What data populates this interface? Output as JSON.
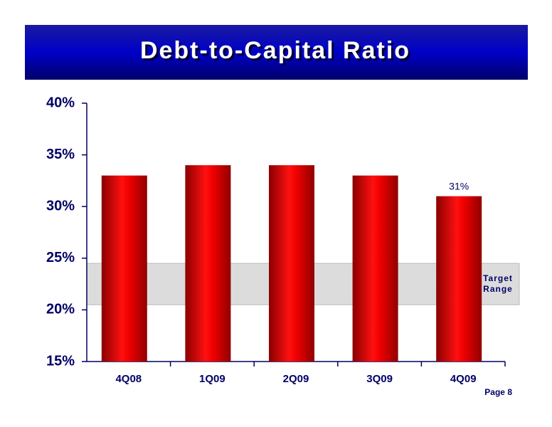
{
  "chart_data": {
    "type": "bar",
    "title": "Debt-to-Capital Ratio",
    "categories": [
      "4Q08",
      "1Q09",
      "2Q09",
      "3Q09",
      "4Q09"
    ],
    "values": [
      33,
      34,
      34,
      33,
      31
    ],
    "value_labels": [
      null,
      null,
      null,
      null,
      "31%"
    ],
    "color": "#e00000",
    "ylim": [
      15,
      40
    ],
    "yticks": [
      {
        "value": 15,
        "label": "15%"
      },
      {
        "value": 20,
        "label": "20%"
      },
      {
        "value": 25,
        "label": "25%"
      },
      {
        "value": 30,
        "label": "30%"
      },
      {
        "value": 35,
        "label": "35%"
      },
      {
        "value": 40,
        "label": "40%"
      }
    ],
    "target_range": {
      "range": [
        20.5,
        24.5
      ],
      "lines": [
        "Target",
        "Range"
      ]
    },
    "footer": "Page 8"
  }
}
